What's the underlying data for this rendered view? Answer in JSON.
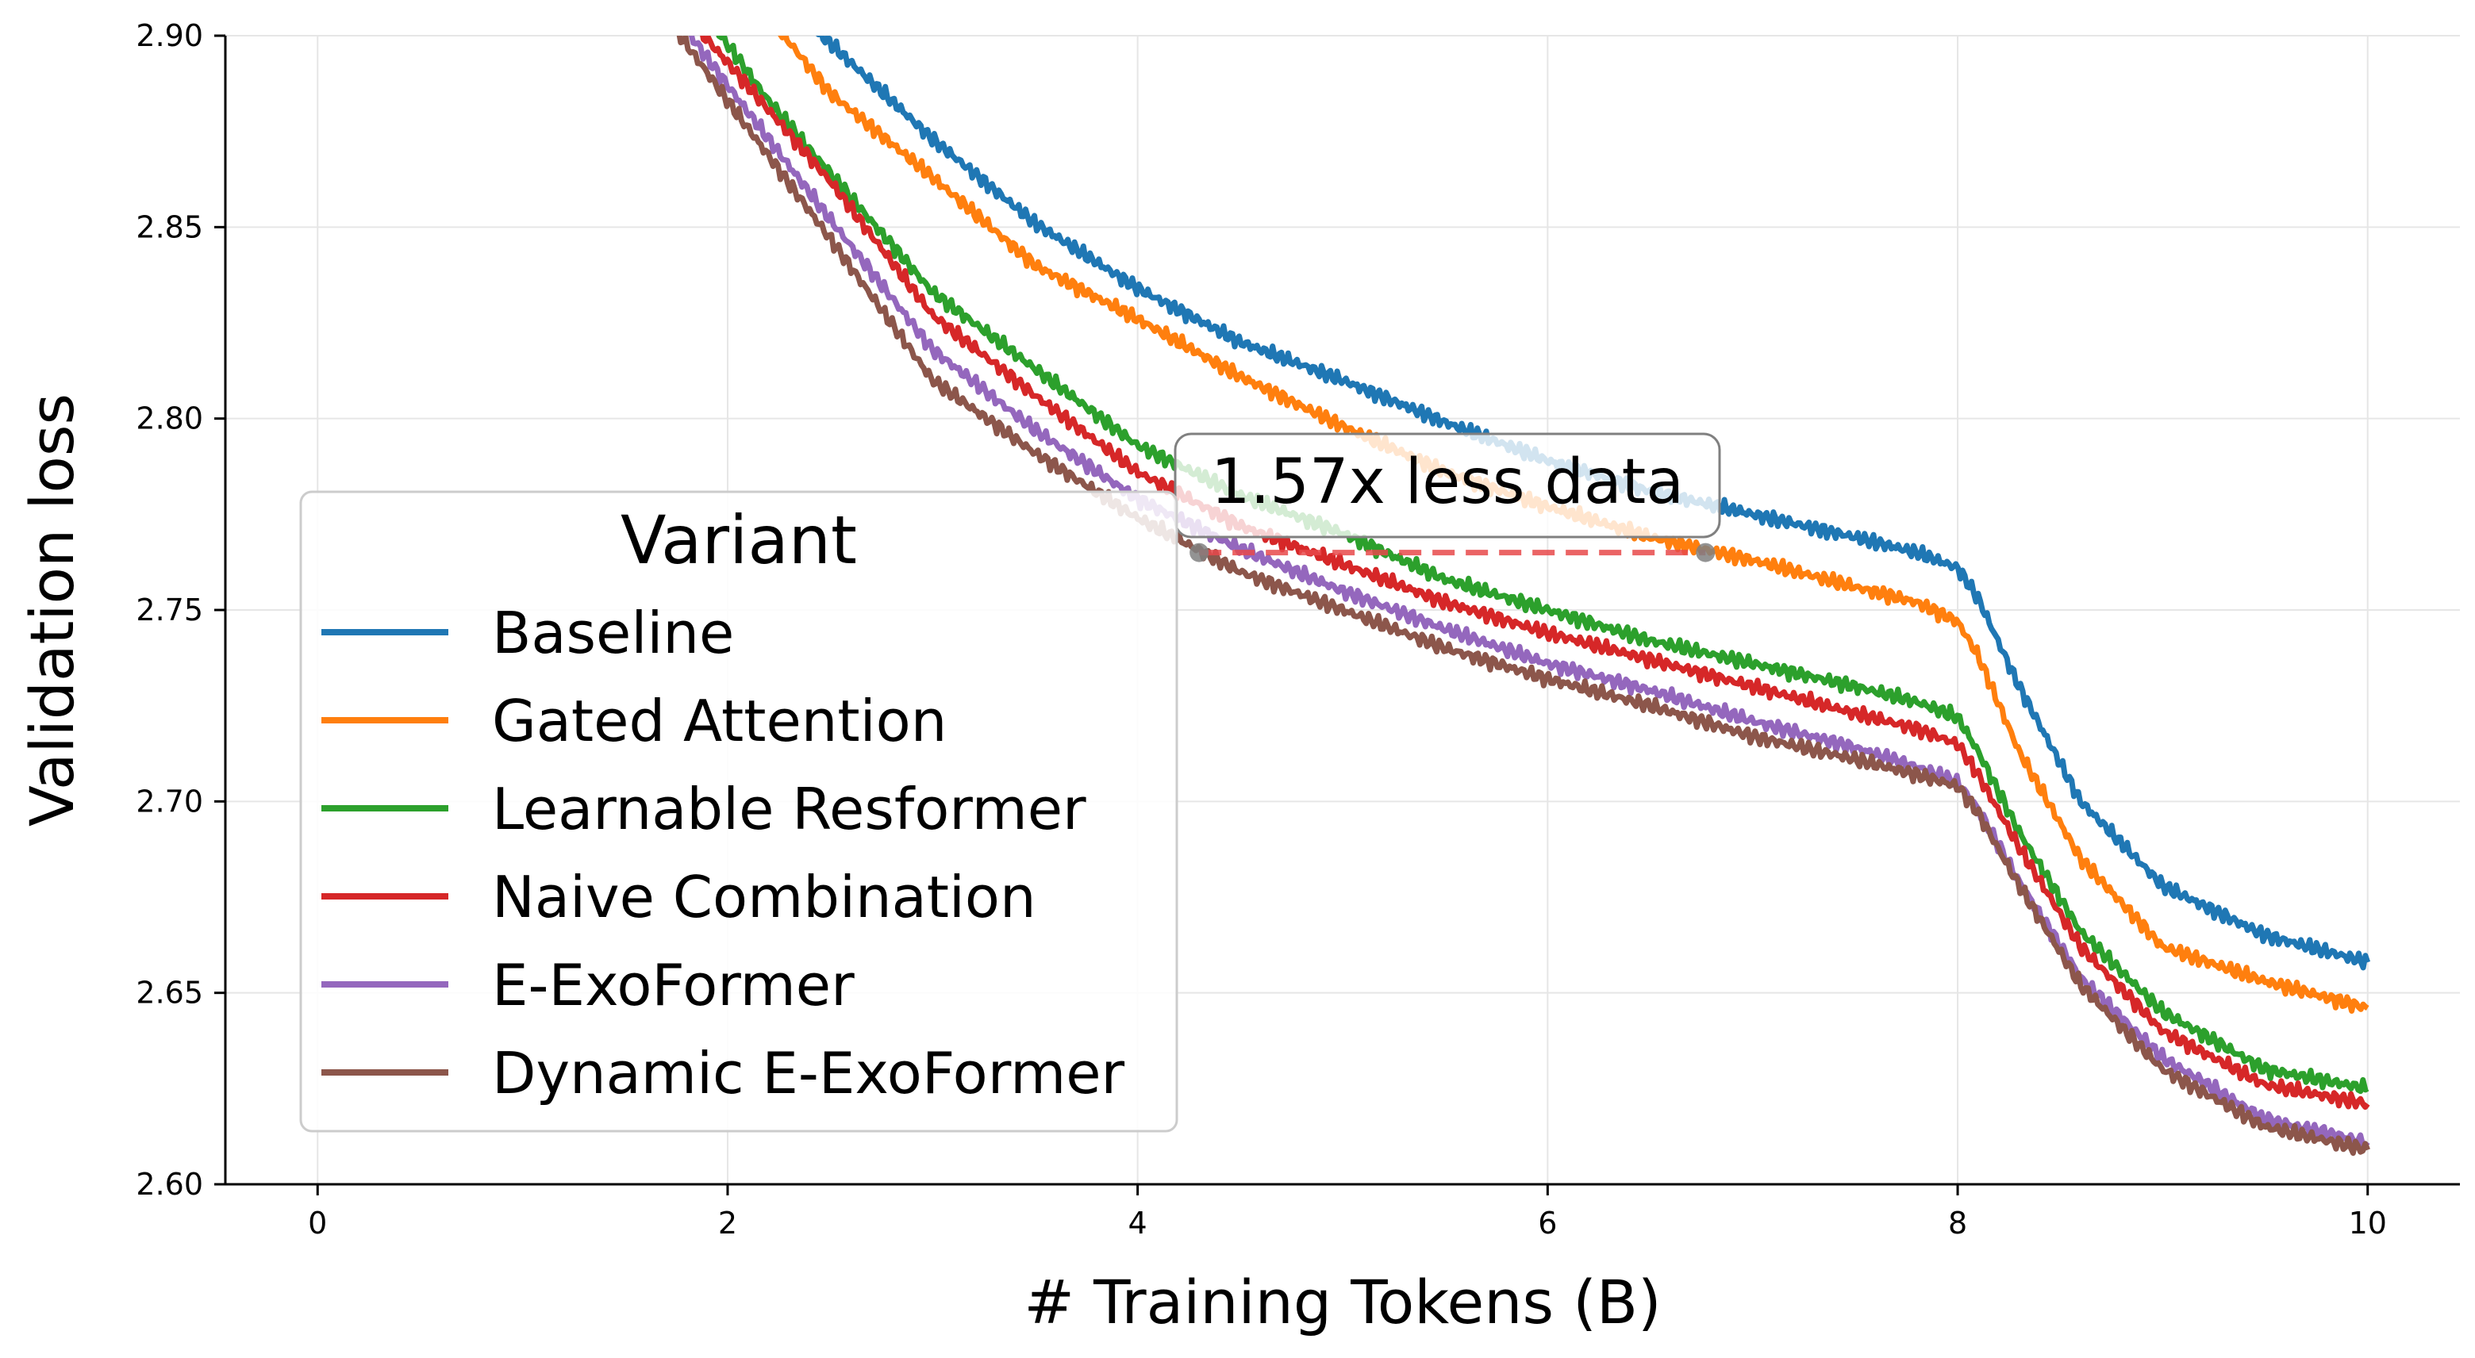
{
  "chart_data": {
    "type": "line",
    "title": "",
    "xlabel": "# Training Tokens (B)",
    "ylabel": "Validation loss",
    "xlim": [
      -0.45,
      10.45
    ],
    "ylim": [
      2.6,
      2.9
    ],
    "xticks": [
      0,
      2,
      4,
      6,
      8,
      10
    ],
    "xtick_labels": [
      "0",
      "2",
      "4",
      "6",
      "8",
      "10"
    ],
    "yticks": [
      2.6,
      2.65,
      2.7,
      2.75,
      2.8,
      2.85,
      2.9
    ],
    "ytick_labels": [
      "2.60",
      "2.65",
      "2.70",
      "2.75",
      "2.80",
      "2.85",
      "2.90"
    ],
    "grid": true,
    "legend": {
      "title": "Variant",
      "placement": "center-left"
    },
    "series": [
      {
        "name": "Baseline",
        "color": "#1f77b4",
        "x": [
          2.4,
          2.6,
          3.0,
          3.5,
          4.0,
          4.5,
          5.0,
          5.5,
          6.0,
          6.5,
          7.0,
          7.5,
          7.8,
          8.0,
          8.1,
          8.3,
          8.6,
          9.0,
          9.5,
          10.0
        ],
        "y": [
          2.903,
          2.893,
          2.873,
          2.851,
          2.834,
          2.82,
          2.81,
          2.799,
          2.789,
          2.781,
          2.775,
          2.769,
          2.765,
          2.761,
          2.753,
          2.73,
          2.7,
          2.678,
          2.665,
          2.658
        ]
      },
      {
        "name": "Gated Attention",
        "color": "#ff7f0e",
        "x": [
          2.2,
          2.5,
          3.0,
          3.5,
          4.0,
          4.5,
          5.0,
          5.5,
          6.0,
          6.5,
          7.0,
          7.5,
          7.8,
          8.0,
          8.1,
          8.3,
          8.6,
          9.0,
          9.5,
          10.0
        ],
        "y": [
          2.905,
          2.885,
          2.863,
          2.84,
          2.826,
          2.811,
          2.798,
          2.786,
          2.777,
          2.769,
          2.763,
          2.756,
          2.752,
          2.747,
          2.738,
          2.713,
          2.685,
          2.662,
          2.653,
          2.646
        ]
      },
      {
        "name": "Learnable Resformer",
        "color": "#2ca02c",
        "x": [
          1.9,
          2.2,
          2.5,
          3.0,
          3.5,
          4.0,
          4.5,
          5.0,
          5.5,
          6.0,
          6.5,
          7.0,
          7.5,
          7.8,
          8.0,
          8.1,
          8.3,
          8.6,
          9.0,
          9.5,
          10.0
        ],
        "y": [
          2.905,
          2.883,
          2.864,
          2.833,
          2.813,
          2.793,
          2.78,
          2.77,
          2.758,
          2.75,
          2.742,
          2.736,
          2.73,
          2.726,
          2.722,
          2.713,
          2.692,
          2.666,
          2.645,
          2.63,
          2.625
        ]
      },
      {
        "name": "Naive Combination",
        "color": "#d62728",
        "x": [
          1.8,
          2.0,
          2.5,
          3.0,
          3.5,
          4.0,
          4.5,
          5.0,
          5.5,
          6.0,
          6.5,
          7.0,
          7.5,
          7.8,
          8.0,
          8.1,
          8.3,
          8.6,
          9.0,
          9.5,
          10.0
        ],
        "y": [
          2.905,
          2.893,
          2.862,
          2.827,
          2.806,
          2.786,
          2.772,
          2.762,
          2.752,
          2.744,
          2.737,
          2.73,
          2.723,
          2.719,
          2.715,
          2.707,
          2.688,
          2.662,
          2.64,
          2.626,
          2.621
        ]
      },
      {
        "name": "E-ExoFormer",
        "color": "#9467bd",
        "x": [
          1.75,
          2.0,
          2.5,
          3.0,
          3.5,
          4.0,
          4.5,
          5.0,
          5.5,
          6.0,
          6.5,
          7.0,
          7.5,
          7.8,
          8.0,
          8.1,
          8.3,
          8.6,
          9.0,
          9.5,
          10.0
        ],
        "y": [
          2.905,
          2.887,
          2.852,
          2.818,
          2.797,
          2.779,
          2.766,
          2.755,
          2.745,
          2.736,
          2.729,
          2.721,
          2.714,
          2.709,
          2.705,
          2.698,
          2.679,
          2.654,
          2.633,
          2.617,
          2.611
        ]
      },
      {
        "name": "Dynamic E-ExoFormer",
        "color": "#8c564b",
        "x": [
          1.7,
          2.0,
          2.5,
          3.0,
          3.5,
          4.0,
          4.5,
          5.0,
          5.5,
          6.0,
          6.5,
          7.0,
          7.5,
          7.8,
          8.0,
          8.1,
          8.3,
          8.6,
          9.0,
          9.5,
          10.0
        ],
        "y": [
          2.905,
          2.883,
          2.847,
          2.81,
          2.791,
          2.774,
          2.76,
          2.75,
          2.74,
          2.732,
          2.725,
          2.717,
          2.711,
          2.707,
          2.704,
          2.697,
          2.678,
          2.652,
          2.63,
          2.615,
          2.609
        ]
      }
    ],
    "annotations": [
      {
        "text": "1.57x less data",
        "color": "#e8494b",
        "marker_color": "#808080",
        "x_start": 4.3,
        "x_end": 6.77,
        "y": 2.765
      }
    ]
  }
}
